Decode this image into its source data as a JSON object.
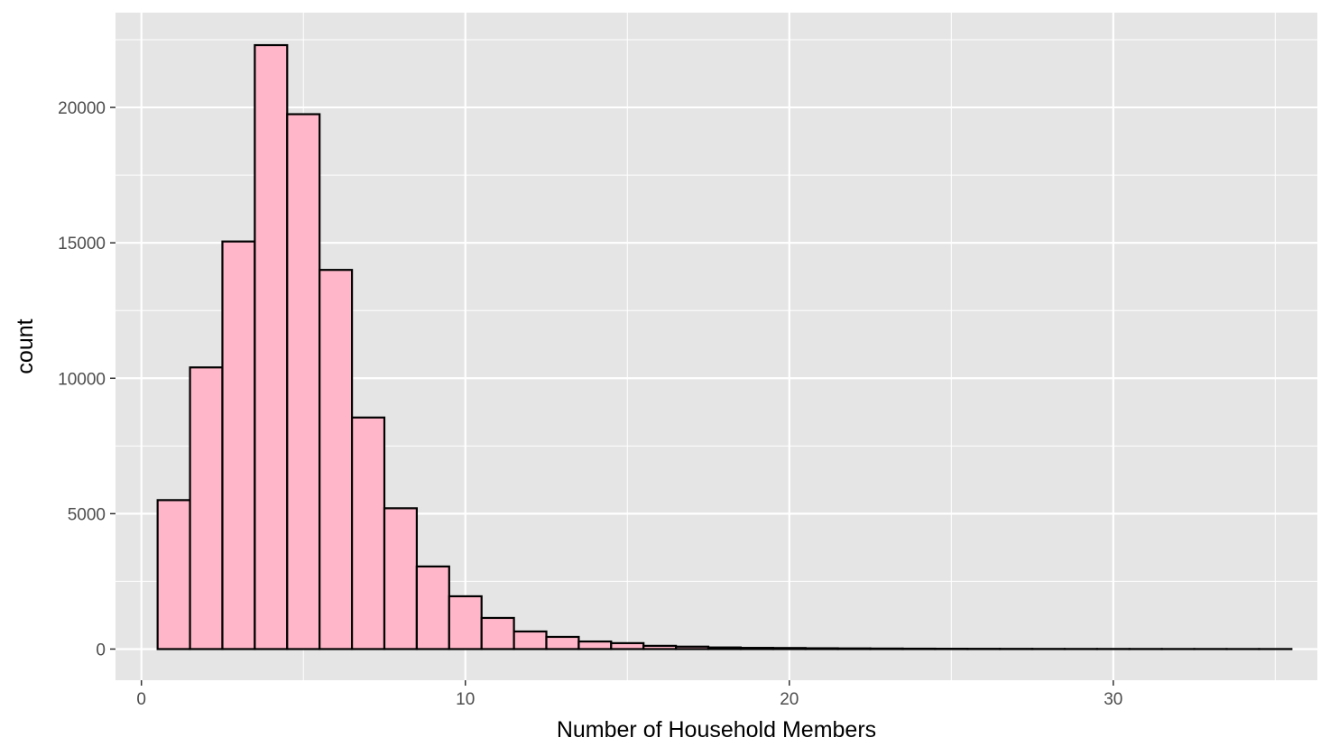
{
  "chart_data": {
    "type": "bar",
    "title": "",
    "xlabel": "Number of Household Members",
    "ylabel": "count",
    "x": [
      1,
      2,
      3,
      4,
      5,
      6,
      7,
      8,
      9,
      10,
      11,
      12,
      13,
      14,
      15,
      16,
      17,
      18,
      19,
      20,
      21,
      22,
      23,
      24,
      25,
      26,
      27,
      28,
      29,
      30,
      31,
      32,
      33,
      34,
      35
    ],
    "values": [
      5500,
      10400,
      15050,
      22300,
      19750,
      14000,
      8550,
      5200,
      3050,
      1950,
      1150,
      650,
      450,
      280,
      220,
      120,
      90,
      60,
      45,
      40,
      30,
      25,
      20,
      15,
      12,
      10,
      8,
      6,
      5,
      5,
      4,
      3,
      3,
      2,
      2
    ],
    "bin_width": 1,
    "xlim": [
      -0.8,
      36.3
    ],
    "ylim": [
      -1150,
      23500
    ],
    "x_ticks": [
      "0",
      "10",
      "20",
      "30"
    ],
    "x_tick_values": [
      0,
      10,
      20,
      30
    ],
    "y_ticks": [
      "0",
      "5000",
      "10000",
      "15000",
      "20000"
    ],
    "y_tick_values": [
      0,
      5000,
      10000,
      15000,
      20000
    ],
    "grid": true,
    "legend": "none",
    "colors": {
      "bar_fill": "#ffb6c8",
      "bar_stroke": "#000000",
      "panel_background": "#e5e5e5",
      "grid_line": "#ffffff"
    }
  }
}
